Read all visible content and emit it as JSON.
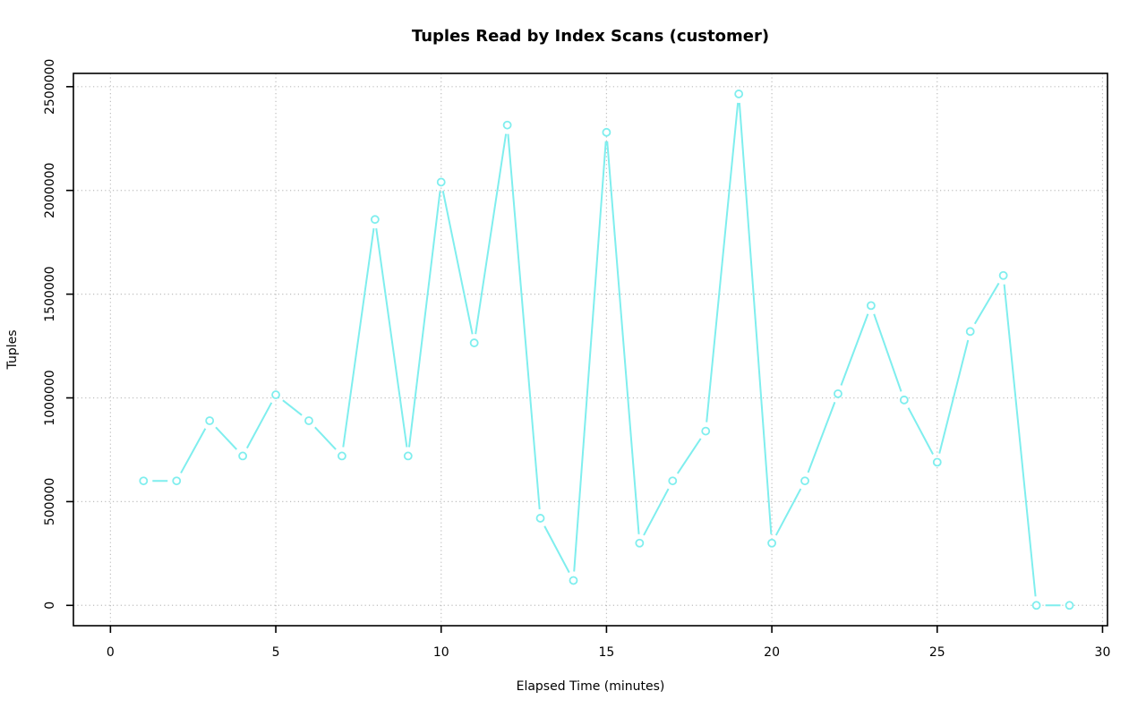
{
  "chart_data": {
    "type": "line",
    "title": "Tuples Read by Index Scans (customer)",
    "xlabel": "Elapsed Time (minutes)",
    "ylabel": "Tuples",
    "x": [
      1,
      2,
      3,
      4,
      5,
      6,
      7,
      8,
      9,
      10,
      11,
      12,
      13,
      14,
      15,
      16,
      17,
      18,
      19,
      20,
      21,
      22,
      23,
      24,
      25,
      26,
      27,
      28,
      29
    ],
    "series": [
      {
        "name": "customer",
        "values": [
          600000,
          600000,
          890000,
          720000,
          1015000,
          890000,
          720000,
          1860000,
          720000,
          2040000,
          1265000,
          2315000,
          420000,
          120000,
          2280000,
          300000,
          600000,
          840000,
          2465000,
          300000,
          600000,
          1020000,
          1445000,
          990000,
          690000,
          1320000,
          1590000,
          0,
          0
        ]
      }
    ],
    "x_ticks": [
      0,
      5,
      10,
      15,
      20,
      25,
      30
    ],
    "x_tick_labels": [
      "0",
      "5",
      "10",
      "15",
      "20",
      "25",
      "30"
    ],
    "y_ticks": [
      0,
      500000,
      1000000,
      1500000,
      2000000,
      2500000
    ],
    "y_tick_labels": [
      "0",
      "500000",
      "1000000",
      "1500000",
      "2000000",
      "2500000"
    ],
    "xlim": [
      -1.12,
      30.15
    ],
    "ylim": [
      -98000,
      2564000
    ],
    "grid": true,
    "grid_style": "dotted",
    "legend": "none",
    "marker": "open-circle",
    "colors": {
      "line": "#7FEEEE",
      "grid": "#BEBEBE",
      "axis": "#000000",
      "text": "#000000",
      "background": "#FFFFFF"
    }
  }
}
